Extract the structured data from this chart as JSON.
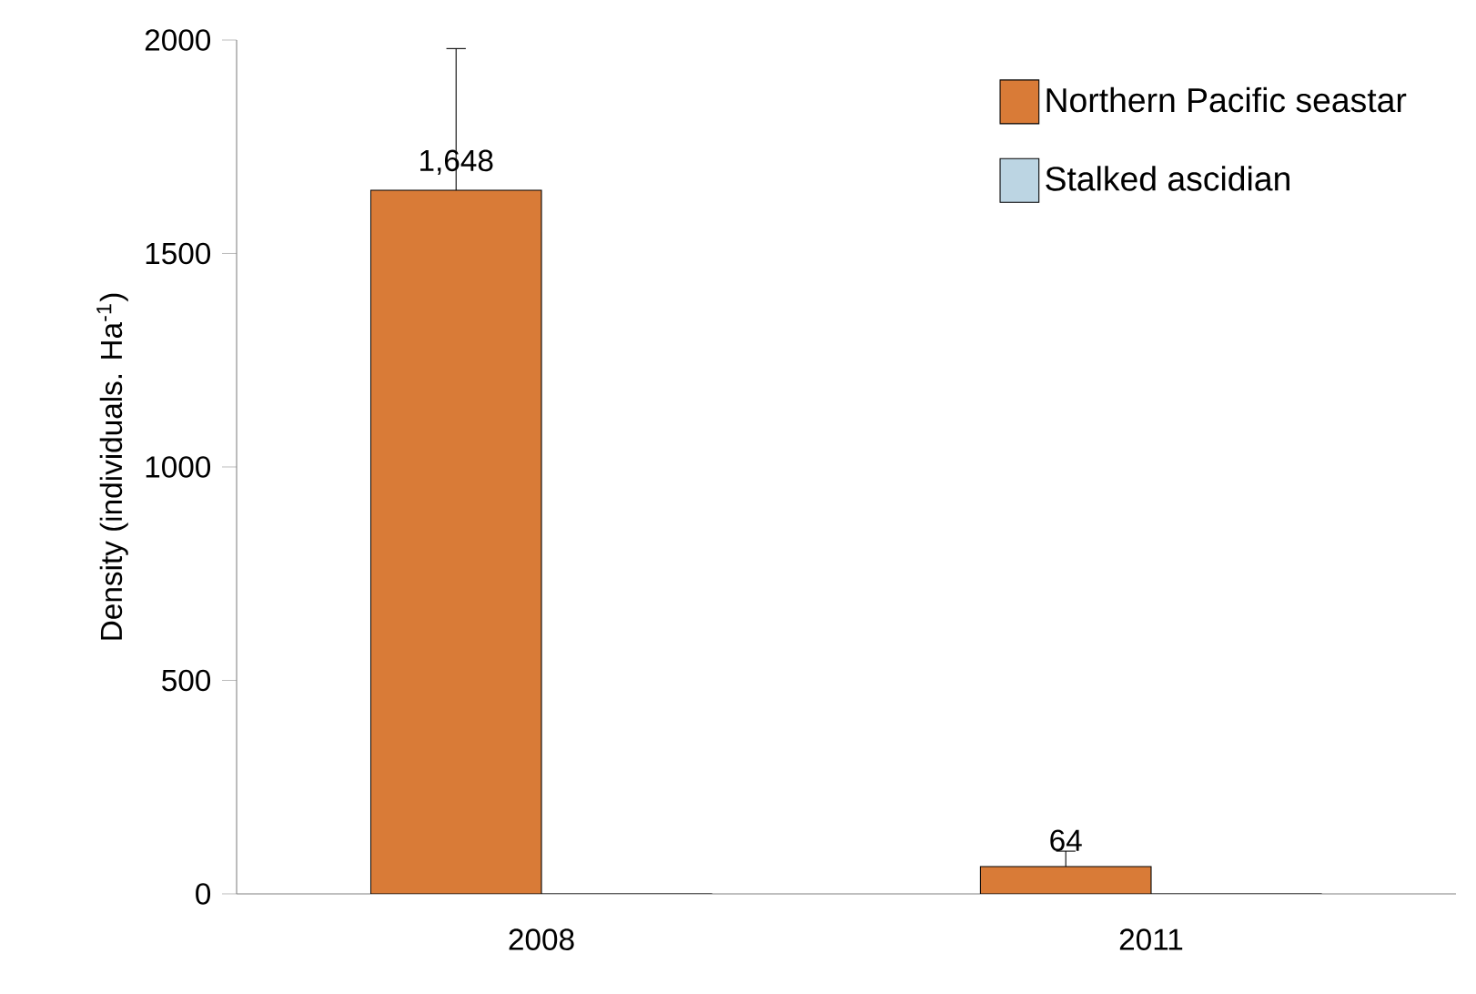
{
  "chart_data": {
    "type": "bar",
    "ylabel": "Density (individuals. Ha$^{-1}$)",
    "categories": [
      "2008",
      "2011"
    ],
    "series": [
      {
        "name": "Northern Pacific seastar",
        "color": "#d97b37",
        "values": [
          1648,
          64
        ],
        "errors": [
          [
            1648,
            1980
          ],
          [
            64,
            100
          ]
        ],
        "value_labels": [
          "1,648",
          "64"
        ]
      },
      {
        "name": "Stalked ascidian",
        "color": "#bcd5e3",
        "values": [
          0,
          0
        ]
      }
    ],
    "ylim": [
      0,
      2000
    ],
    "yticks": [
      0,
      500,
      1000,
      1500,
      2000
    ],
    "grid": false,
    "legend": "top right"
  }
}
